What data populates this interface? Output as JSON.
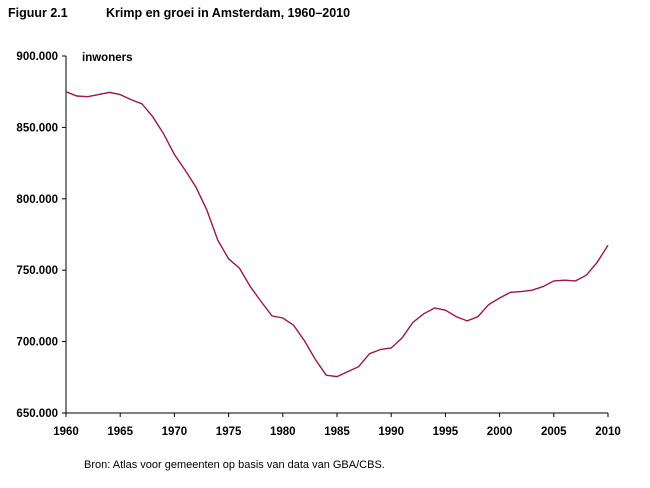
{
  "figure": {
    "number": "Figuur 2.1",
    "title": "Krimp en groei in Amsterdam, 1960–2010",
    "source": "Bron: Atlas voor gemeenten op basis van data van GBA/CBS."
  },
  "chart_data": {
    "type": "line",
    "title": "Krimp en groei in Amsterdam, 1960–2010",
    "ylabel": "inwoners",
    "xlabel": "",
    "xlim": [
      1960,
      2010
    ],
    "ylim": [
      650000,
      900000
    ],
    "x_ticks": [
      1960,
      1965,
      1970,
      1975,
      1980,
      1985,
      1990,
      1995,
      2000,
      2005,
      2010
    ],
    "x_tick_labels": [
      "1960",
      "1965",
      "1970",
      "1975",
      "1980",
      "1985",
      "1990",
      "1995",
      "2000",
      "2005",
      "2010"
    ],
    "y_ticks": [
      650000,
      700000,
      750000,
      800000,
      850000,
      900000
    ],
    "y_tick_labels": [
      "650.000",
      "700.000",
      "750.000",
      "800.000",
      "850.000",
      "900.000"
    ],
    "grid": false,
    "line_color": "#a0164a",
    "series": [
      {
        "x": [
          1960,
          1961,
          1962,
          1963,
          1964,
          1965,
          1966,
          1967,
          1968,
          1969,
          1970,
          1971,
          1972,
          1973,
          1974,
          1975,
          1976,
          1977,
          1978,
          1979,
          1980,
          1981,
          1982,
          1983,
          1984,
          1985,
          1986,
          1987,
          1988,
          1989,
          1990,
          1991,
          1992,
          1993,
          1994,
          1995,
          1996,
          1997,
          1998,
          1999,
          2000,
          2001,
          2002,
          2003,
          2004,
          2005,
          2006,
          2007,
          2008,
          2009,
          2010
        ],
        "values": [
          875000,
          872000,
          871500,
          873000,
          874500,
          873000,
          869500,
          866500,
          857500,
          845500,
          831000,
          820000,
          808000,
          792000,
          771000,
          758000,
          751500,
          738500,
          728000,
          718000,
          716500,
          711500,
          700500,
          687500,
          676500,
          675500,
          679000,
          682500,
          691500,
          694500,
          695500,
          702500,
          713500,
          719500,
          723500,
          722000,
          717500,
          714500,
          717500,
          726000,
          730500,
          734500,
          735000,
          736000,
          738500,
          742500,
          743000,
          742500,
          746500,
          755500,
          767500
        ]
      }
    ]
  }
}
